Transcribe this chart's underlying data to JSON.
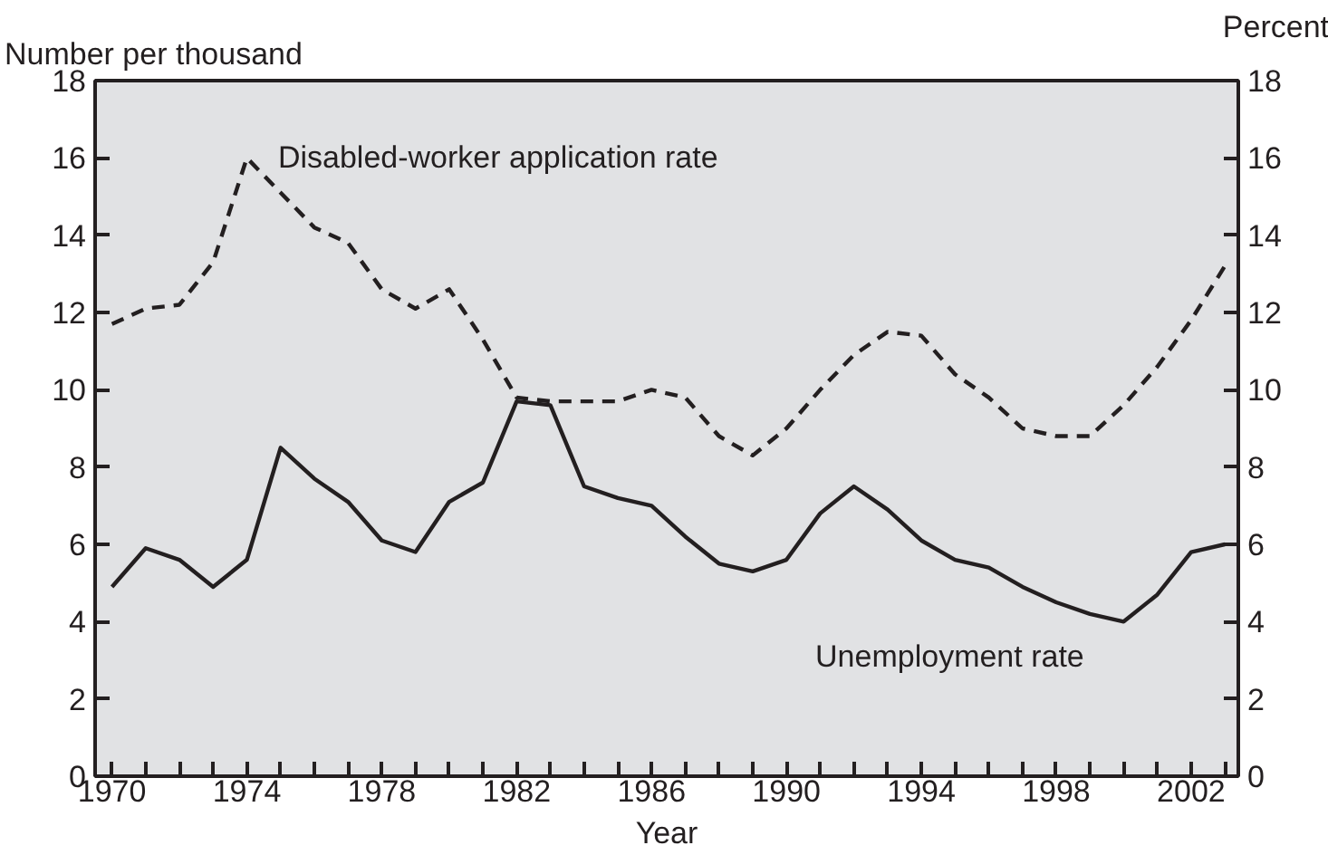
{
  "chart_data": {
    "type": "line",
    "ylabel": "Number per thousand",
    "y2label": "Percent",
    "xlabel": "Year",
    "x": [
      1970,
      1971,
      1972,
      1973,
      1974,
      1975,
      1976,
      1977,
      1978,
      1979,
      1980,
      1981,
      1982,
      1983,
      1984,
      1985,
      1986,
      1987,
      1988,
      1989,
      1990,
      1991,
      1992,
      1993,
      1994,
      1995,
      1996,
      1997,
      1998,
      1999,
      2000,
      2001,
      2002,
      2003
    ],
    "series": [
      {
        "color": "#231f20",
        "line_style": "dashed",
        "values": [
          11.7,
          12.1,
          12.2,
          13.3,
          16.0,
          15.1,
          14.2,
          13.8,
          12.6,
          12.1,
          12.6,
          11.3,
          9.8,
          9.7,
          9.7,
          9.7,
          10.0,
          9.8,
          8.8,
          8.3,
          9.0,
          10.0,
          10.9,
          11.5,
          11.4,
          10.4,
          9.8,
          9.0,
          8.8,
          8.8,
          9.6,
          10.6,
          11.8,
          13.2
        ]
      },
      {
        "color": "#231f20",
        "line_style": "solid",
        "values": [
          4.9,
          5.9,
          5.6,
          4.9,
          5.6,
          8.5,
          7.7,
          7.1,
          6.1,
          5.8,
          7.1,
          7.6,
          9.7,
          9.6,
          7.5,
          7.2,
          7.0,
          6.2,
          5.5,
          5.3,
          5.6,
          6.8,
          7.5,
          6.9,
          6.1,
          5.6,
          5.4,
          4.9,
          4.5,
          4.2,
          4.0,
          4.7,
          5.8,
          6.0
        ]
      }
    ],
    "annotations": [
      "Disabled-worker application rate",
      "Unemployment rate"
    ],
    "xlim": [
      1969.5,
      2003.4
    ],
    "xticks": [
      1970,
      {
        "value": 1971,
        "label": null
      },
      {
        "value": 1972,
        "label": null
      },
      {
        "value": 1973,
        "label": null
      },
      1974,
      {
        "value": 1975,
        "label": null
      },
      {
        "value": 1976,
        "label": null
      },
      {
        "value": 1977,
        "label": null
      },
      1978,
      {
        "value": 1979,
        "label": null
      },
      {
        "value": 1980,
        "label": null
      },
      {
        "value": 1981,
        "label": null
      },
      1982,
      {
        "value": 1983,
        "label": null
      },
      {
        "value": 1984,
        "label": null
      },
      {
        "value": 1985,
        "label": null
      },
      1986,
      {
        "value": 1987,
        "label": null
      },
      {
        "value": 1988,
        "label": null
      },
      {
        "value": 1989,
        "label": null
      },
      1990,
      {
        "value": 1991,
        "label": null
      },
      {
        "value": 1992,
        "label": null
      },
      {
        "value": 1993,
        "label": null
      },
      1994,
      {
        "value": 1995,
        "label": null
      },
      {
        "value": 1996,
        "label": null
      },
      {
        "value": 1997,
        "label": null
      },
      1998,
      {
        "value": 1999,
        "label": null
      },
      {
        "value": 2000,
        "label": null
      },
      {
        "value": 2001,
        "label": null
      },
      2002,
      {
        "value": 2003,
        "label": null
      }
    ],
    "ylim": [
      0,
      18
    ],
    "yticks": [
      0,
      2,
      4,
      6,
      8,
      10,
      12,
      14,
      16,
      18
    ],
    "y2lim": [
      0,
      18
    ],
    "y2ticks": [
      0,
      2,
      4,
      6,
      8,
      10,
      12,
      14,
      16,
      18
    ],
    "grid": false
  }
}
